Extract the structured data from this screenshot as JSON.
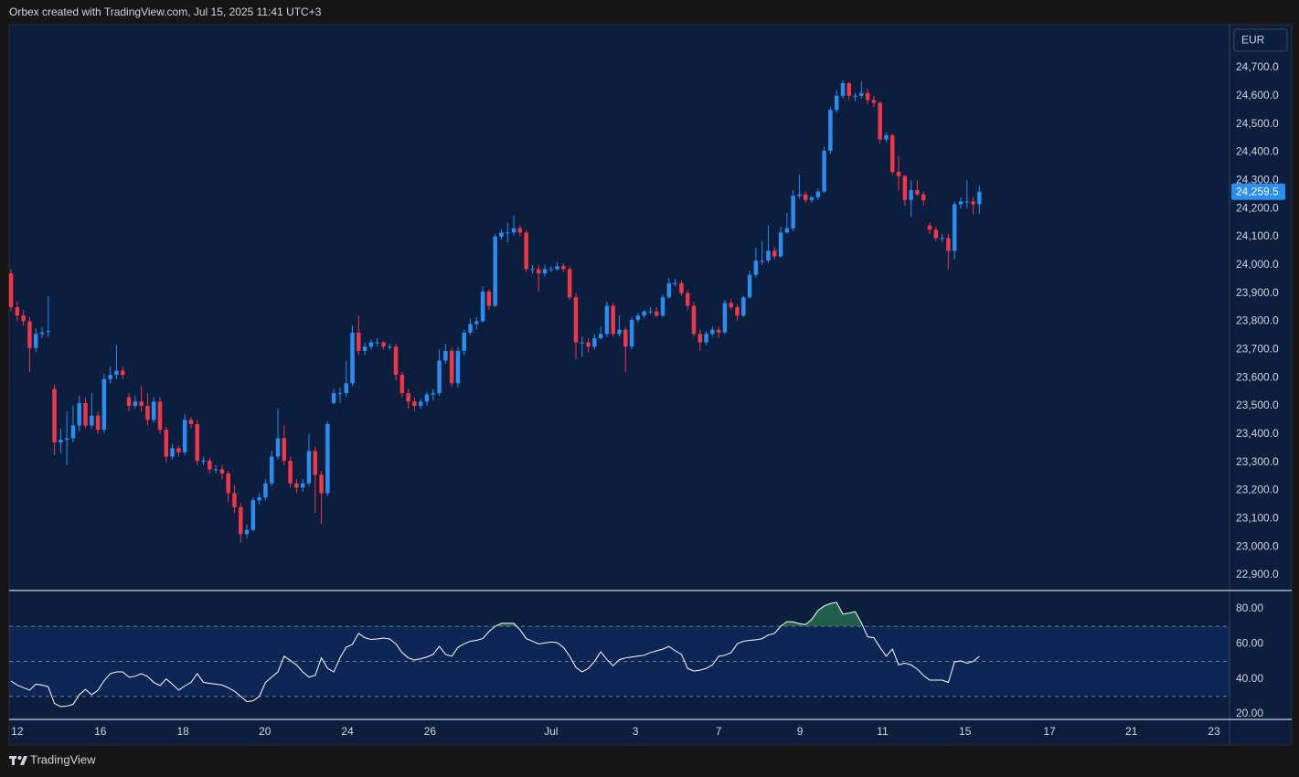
{
  "header": "Orbex created with TradingView.com, Jul 15, 2025 11:41 UTC+3",
  "footer": "TradingView",
  "chart_data": [
    {
      "type": "candlestick",
      "currency": "EUR",
      "last_price_label": "24,259.5",
      "up_color": "#2a8df0",
      "down_color": "#f23645",
      "xlim": [
        -0.3,
        196.3
      ],
      "xticks": [
        {
          "value": 1,
          "label": "12"
        },
        {
          "value": 14.4,
          "label": "16"
        },
        {
          "value": 27.7,
          "label": "18"
        },
        {
          "value": 40.9,
          "label": "20"
        },
        {
          "value": 54.2,
          "label": "24"
        },
        {
          "value": 67.5,
          "label": "26"
        },
        {
          "value": 87,
          "label": "Jul"
        },
        {
          "value": 100.6,
          "label": "3"
        },
        {
          "value": 114,
          "label": "7"
        },
        {
          "value": 127.1,
          "label": "9"
        },
        {
          "value": 140.4,
          "label": "11"
        },
        {
          "value": 153.7,
          "label": "15"
        },
        {
          "value": 167.3,
          "label": "17"
        },
        {
          "value": 180.5,
          "label": "21"
        },
        {
          "value": 193.8,
          "label": "23"
        }
      ],
      "ylim": [
        22848,
        24849
      ],
      "yticks": [
        {
          "value": 22900,
          "label": "22,900.0"
        },
        {
          "value": 23000,
          "label": "23,000.0"
        },
        {
          "value": 23100,
          "label": "23,100.0"
        },
        {
          "value": 23200,
          "label": "23,200.0"
        },
        {
          "value": 23300,
          "label": "23,300.0"
        },
        {
          "value": 23400,
          "label": "23,400.0"
        },
        {
          "value": 23500,
          "label": "23,500.0"
        },
        {
          "value": 23600,
          "label": "23,600.0"
        },
        {
          "value": 23700,
          "label": "23,700.0"
        },
        {
          "value": 23800,
          "label": "23,800.0"
        },
        {
          "value": 23900,
          "label": "23,900.0"
        },
        {
          "value": 24000,
          "label": "24,000.0"
        },
        {
          "value": 24100,
          "label": "24,100.0"
        },
        {
          "value": 24200,
          "label": "24,200.0"
        },
        {
          "value": 24300,
          "label": "24,300.0"
        },
        {
          "value": 24400,
          "label": "24,400.0"
        },
        {
          "value": 24500,
          "label": "24,500.0"
        },
        {
          "value": 24600,
          "label": "24,600.0"
        },
        {
          "value": 24700,
          "label": "24,700.0"
        }
      ],
      "ohlc": [
        [
          23970,
          23985,
          23835,
          23850
        ],
        [
          23850,
          23870,
          23800,
          23820
        ],
        [
          23820,
          23840,
          23785,
          23800
        ],
        [
          23800,
          23815,
          23620,
          23705
        ],
        [
          23705,
          23775,
          23690,
          23755
        ],
        [
          23755,
          23780,
          23740,
          23760
        ],
        [
          23765,
          23890,
          23745,
          23765
        ],
        [
          23560,
          23575,
          23325,
          23370
        ],
        [
          23370,
          23420,
          23330,
          23380
        ],
        [
          23380,
          23480,
          23290,
          23385
        ],
        [
          23385,
          23500,
          23370,
          23430
        ],
        [
          23430,
          23535,
          23410,
          23510
        ],
        [
          23510,
          23530,
          23420,
          23430
        ],
        [
          23430,
          23545,
          23420,
          23465
        ],
        [
          23465,
          23480,
          23400,
          23415
        ],
        [
          23415,
          23615,
          23405,
          23595
        ],
        [
          23595,
          23640,
          23580,
          23610
        ],
        [
          23610,
          23715,
          23595,
          23625
        ],
        [
          23625,
          23640,
          23595,
          23610
        ],
        [
          23530,
          23545,
          23480,
          23500
        ],
        [
          23500,
          23535,
          23490,
          23515
        ],
        [
          23515,
          23570,
          23480,
          23500
        ],
        [
          23500,
          23545,
          23430,
          23450
        ],
        [
          23450,
          23530,
          23440,
          23515
        ],
        [
          23515,
          23530,
          23400,
          23415
        ],
        [
          23415,
          23425,
          23300,
          23320
        ],
        [
          23320,
          23365,
          23310,
          23350
        ],
        [
          23350,
          23360,
          23320,
          23335
        ],
        [
          23335,
          23470,
          23325,
          23450
        ],
        [
          23450,
          23460,
          23420,
          23435
        ],
        [
          23435,
          23450,
          23290,
          23305
        ],
        [
          23305,
          23320,
          23290,
          23305
        ],
        [
          23305,
          23315,
          23260,
          23275
        ],
        [
          23275,
          23290,
          23260,
          23275
        ],
        [
          23275,
          23290,
          23240,
          23260
        ],
        [
          23260,
          23270,
          23160,
          23190
        ],
        [
          23190,
          23220,
          23120,
          23140
        ],
        [
          23140,
          23155,
          23015,
          23045
        ],
        [
          23045,
          23080,
          23030,
          23060
        ],
        [
          23060,
          23175,
          23055,
          23165
        ],
        [
          23165,
          23190,
          23150,
          23175
        ],
        [
          23175,
          23240,
          23165,
          23225
        ],
        [
          23225,
          23340,
          23215,
          23320
        ],
        [
          23320,
          23490,
          23310,
          23385
        ],
        [
          23385,
          23430,
          23290,
          23305
        ],
        [
          23305,
          23320,
          23210,
          23225
        ],
        [
          23225,
          23240,
          23190,
          23210
        ],
        [
          23210,
          23240,
          23195,
          23225
        ],
        [
          23225,
          23400,
          23215,
          23340
        ],
        [
          23340,
          23355,
          23120,
          23255
        ],
        [
          23255,
          23270,
          23080,
          23190
        ],
        [
          23190,
          23445,
          23180,
          23435
        ],
        [
          23510,
          23560,
          23505,
          23545
        ],
        [
          23545,
          23565,
          23510,
          23545
        ],
        [
          23545,
          23660,
          23530,
          23580
        ],
        [
          23580,
          23785,
          23570,
          23760
        ],
        [
          23760,
          23820,
          23680,
          23695
        ],
        [
          23695,
          23725,
          23680,
          23710
        ],
        [
          23710,
          23735,
          23700,
          23725
        ],
        [
          23725,
          23740,
          23710,
          23725
        ],
        [
          23725,
          23730,
          23700,
          23710
        ],
        [
          23710,
          23720,
          23700,
          23710
        ],
        [
          23710,
          23720,
          23590,
          23610
        ],
        [
          23610,
          23620,
          23530,
          23545
        ],
        [
          23545,
          23560,
          23490,
          23515
        ],
        [
          23515,
          23530,
          23480,
          23500
        ],
        [
          23500,
          23525,
          23490,
          23515
        ],
        [
          23515,
          23550,
          23500,
          23540
        ],
        [
          23540,
          23560,
          23520,
          23545
        ],
        [
          23545,
          23700,
          23535,
          23660
        ],
        [
          23660,
          23720,
          23650,
          23695
        ],
        [
          23695,
          23705,
          23570,
          23580
        ],
        [
          23580,
          23710,
          23565,
          23695
        ],
        [
          23695,
          23770,
          23680,
          23760
        ],
        [
          23760,
          23810,
          23750,
          23790
        ],
        [
          23790,
          23815,
          23770,
          23800
        ],
        [
          23800,
          23925,
          23795,
          23905
        ],
        [
          23905,
          23915,
          23840,
          23855
        ],
        [
          23855,
          24110,
          23850,
          24100
        ],
        [
          24100,
          24125,
          24090,
          24115
        ],
        [
          24115,
          24150,
          24080,
          24115
        ],
        [
          24115,
          24175,
          24105,
          24130
        ],
        [
          24130,
          24140,
          24100,
          24115
        ],
        [
          24115,
          24125,
          23975,
          23985
        ],
        [
          23985,
          24000,
          23970,
          23985
        ],
        [
          23985,
          24000,
          23905,
          23970
        ],
        [
          23970,
          24000,
          23960,
          23985
        ],
        [
          23985,
          23995,
          23975,
          23985
        ],
        [
          23985,
          24010,
          23980,
          23995
        ],
        [
          23995,
          24005,
          23975,
          23985
        ],
        [
          23985,
          23995,
          23875,
          23885
        ],
        [
          23885,
          23900,
          23665,
          23725
        ],
        [
          23725,
          23745,
          23675,
          23725
        ],
        [
          23725,
          23740,
          23690,
          23710
        ],
        [
          23710,
          23755,
          23700,
          23740
        ],
        [
          23740,
          23780,
          23735,
          23755
        ],
        [
          23755,
          23870,
          23745,
          23855
        ],
        [
          23855,
          23865,
          23745,
          23755
        ],
        [
          23755,
          23820,
          23745,
          23770
        ],
        [
          23770,
          23780,
          23620,
          23710
        ],
        [
          23710,
          23815,
          23700,
          23805
        ],
        [
          23805,
          23830,
          23795,
          23820
        ],
        [
          23820,
          23840,
          23810,
          23835
        ],
        [
          23835,
          23850,
          23825,
          23835
        ],
        [
          23835,
          23850,
          23815,
          23820
        ],
        [
          23820,
          23895,
          23815,
          23885
        ],
        [
          23885,
          23955,
          23880,
          23935
        ],
        [
          23935,
          23950,
          23925,
          23935
        ],
        [
          23935,
          23945,
          23890,
          23900
        ],
        [
          23900,
          23910,
          23840,
          23855
        ],
        [
          23855,
          23870,
          23745,
          23755
        ],
        [
          23755,
          23770,
          23695,
          23725
        ],
        [
          23725,
          23765,
          23715,
          23755
        ],
        [
          23755,
          23780,
          23745,
          23770
        ],
        [
          23770,
          23780,
          23740,
          23760
        ],
        [
          23760,
          23875,
          23755,
          23865
        ],
        [
          23865,
          23880,
          23840,
          23850
        ],
        [
          23850,
          23860,
          23800,
          23820
        ],
        [
          23820,
          23890,
          23815,
          23885
        ],
        [
          23885,
          23980,
          23880,
          23965
        ],
        [
          23965,
          24060,
          23955,
          24015
        ],
        [
          24015,
          24085,
          24000,
          24015
        ],
        [
          24015,
          24140,
          24005,
          24050
        ],
        [
          24050,
          24065,
          24020,
          24030
        ],
        [
          24030,
          24135,
          24025,
          24115
        ],
        [
          24115,
          24185,
          24110,
          24130
        ],
        [
          24130,
          24265,
          24120,
          24245
        ],
        [
          24245,
          24320,
          24235,
          24250
        ],
        [
          24250,
          24260,
          24220,
          24230
        ],
        [
          24230,
          24245,
          24220,
          24240
        ],
        [
          24240,
          24270,
          24230,
          24260
        ],
        [
          24260,
          24420,
          24255,
          24405
        ],
        [
          24405,
          24560,
          24395,
          24550
        ],
        [
          24550,
          24620,
          24540,
          24600
        ],
        [
          24600,
          24655,
          24590,
          24645
        ],
        [
          24645,
          24650,
          24585,
          24600
        ],
        [
          24600,
          24610,
          24580,
          24600
        ],
        [
          24600,
          24650,
          24590,
          24610
        ],
        [
          24610,
          24625,
          24570,
          24585
        ],
        [
          24585,
          24600,
          24560,
          24575
        ],
        [
          24575,
          24580,
          24430,
          24445
        ],
        [
          24445,
          24470,
          24435,
          24460
        ],
        [
          24460,
          24465,
          24320,
          24330
        ],
        [
          24330,
          24385,
          24265,
          24315
        ],
        [
          24315,
          24320,
          24210,
          24230
        ],
        [
          24230,
          24300,
          24170,
          24265
        ],
        [
          24265,
          24300,
          24245,
          24250
        ],
        [
          24250,
          24260,
          24210,
          24230
        ],
        [
          24140,
          24150,
          24110,
          24125
        ],
        [
          24125,
          24135,
          24085,
          24095
        ],
        [
          24095,
          24110,
          24080,
          24095
        ],
        [
          24095,
          24110,
          23985,
          24050
        ],
        [
          24050,
          24225,
          24020,
          24215
        ],
        [
          24215,
          24240,
          24200,
          24225
        ],
        [
          24225,
          24300,
          24200,
          24225
        ],
        [
          24225,
          24240,
          24180,
          24215
        ],
        [
          24215,
          24280,
          24180,
          24259.5
        ]
      ]
    },
    {
      "type": "line",
      "color": "#ffffff",
      "fill_color": "#2e8b57",
      "fill_above": 70,
      "levels": [
        30,
        50,
        70
      ],
      "band_color": "#2962ff",
      "ylim": [
        16.9,
        89.9
      ],
      "yticks": [
        {
          "value": 20,
          "label": "20.00"
        },
        {
          "value": 40,
          "label": "40.00"
        },
        {
          "value": 60,
          "label": "60.00"
        },
        {
          "value": 80,
          "label": "80.00"
        }
      ],
      "values": [
        38.8,
        36.5,
        35,
        33.6,
        37,
        36.5,
        35.5,
        26,
        24.2,
        24.5,
        25.5,
        31,
        34,
        31,
        33.5,
        39,
        43,
        44,
        44,
        41,
        41.5,
        43,
        41.4,
        38,
        36.2,
        40,
        37,
        33.6,
        36,
        38,
        43,
        38,
        37.5,
        37,
        36.5,
        35,
        33,
        30,
        27,
        27.5,
        30,
        38,
        41,
        44,
        53,
        50.5,
        48,
        44,
        41,
        42,
        52,
        46,
        44,
        52,
        58,
        59.7,
        66,
        63.5,
        62.5,
        62.8,
        63.3,
        62.8,
        60,
        55,
        52,
        50.8,
        51.5,
        52.5,
        54,
        58.6,
        54,
        52.9,
        58,
        60,
        61.5,
        62,
        63,
        67,
        70,
        71.7,
        71.7,
        71.7,
        68,
        63,
        61.5,
        60,
        60.5,
        61,
        60.7,
        58,
        53,
        46.6,
        44,
        46,
        50,
        55.5,
        51,
        47.5,
        51,
        52,
        52.5,
        53,
        53.5,
        55,
        56,
        57,
        58.6,
        56,
        54,
        46,
        44.5,
        45,
        46,
        48,
        52.9,
        53.5,
        55,
        60,
        61.5,
        62,
        62.3,
        63,
        65,
        66,
        70,
        72.7,
        72.5,
        71.5,
        71,
        74,
        79,
        81.6,
        83,
        83.7,
        77,
        77.5,
        78.4,
        72,
        64,
        63.5,
        58,
        53,
        57,
        48,
        49,
        48,
        45.6,
        42,
        39.3,
        39.3,
        39.3,
        38,
        49.7,
        50.3,
        49,
        50,
        52.9
      ]
    }
  ]
}
